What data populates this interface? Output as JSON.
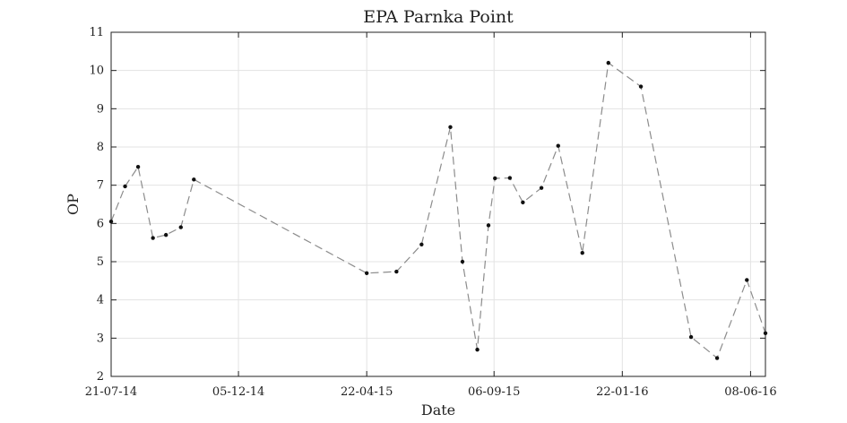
{
  "chart_data": {
    "type": "line",
    "title": "EPA Parnka Point",
    "xlabel": "Date",
    "ylabel": "OP",
    "ylim": [
      2,
      11
    ],
    "xlim": [
      "2014-07-21",
      "2016-06-24"
    ],
    "yticks": [
      2,
      3,
      4,
      5,
      6,
      7,
      8,
      9,
      10,
      11
    ],
    "xticks": [
      {
        "date": "2014-07-21",
        "label": "21-07-14"
      },
      {
        "date": "2014-12-05",
        "label": "05-12-14"
      },
      {
        "date": "2015-04-22",
        "label": "22-04-15"
      },
      {
        "date": "2015-09-06",
        "label": "06-09-15"
      },
      {
        "date": "2016-01-22",
        "label": "22-01-16"
      },
      {
        "date": "2016-06-08",
        "label": "08-06-16"
      }
    ],
    "grid": true,
    "line_style": "dashed",
    "series": [
      {
        "points": [
          {
            "x": "2014-07-21",
            "y": 6.05
          },
          {
            "x": "2014-08-05",
            "y": 6.97
          },
          {
            "x": "2014-08-19",
            "y": 7.48
          },
          {
            "x": "2014-09-04",
            "y": 5.62
          },
          {
            "x": "2014-09-18",
            "y": 5.7
          },
          {
            "x": "2014-10-04",
            "y": 5.9
          },
          {
            "x": "2014-10-18",
            "y": 7.15
          },
          {
            "x": "2015-04-22",
            "y": 4.7
          },
          {
            "x": "2015-05-24",
            "y": 4.74
          },
          {
            "x": "2015-06-20",
            "y": 5.45
          },
          {
            "x": "2015-07-21",
            "y": 8.52
          },
          {
            "x": "2015-08-03",
            "y": 5.0
          },
          {
            "x": "2015-08-19",
            "y": 2.7
          },
          {
            "x": "2015-08-31",
            "y": 5.95
          },
          {
            "x": "2015-09-07",
            "y": 7.18
          },
          {
            "x": "2015-09-23",
            "y": 7.19
          },
          {
            "x": "2015-10-07",
            "y": 6.55
          },
          {
            "x": "2015-10-27",
            "y": 6.93
          },
          {
            "x": "2015-11-14",
            "y": 8.03
          },
          {
            "x": "2015-12-10",
            "y": 5.23
          },
          {
            "x": "2016-01-07",
            "y": 10.2
          },
          {
            "x": "2016-02-11",
            "y": 9.58
          },
          {
            "x": "2016-04-05",
            "y": 3.03
          },
          {
            "x": "2016-05-03",
            "y": 2.48
          },
          {
            "x": "2016-06-04",
            "y": 4.52
          },
          {
            "x": "2016-06-24",
            "y": 3.13
          }
        ]
      }
    ]
  }
}
